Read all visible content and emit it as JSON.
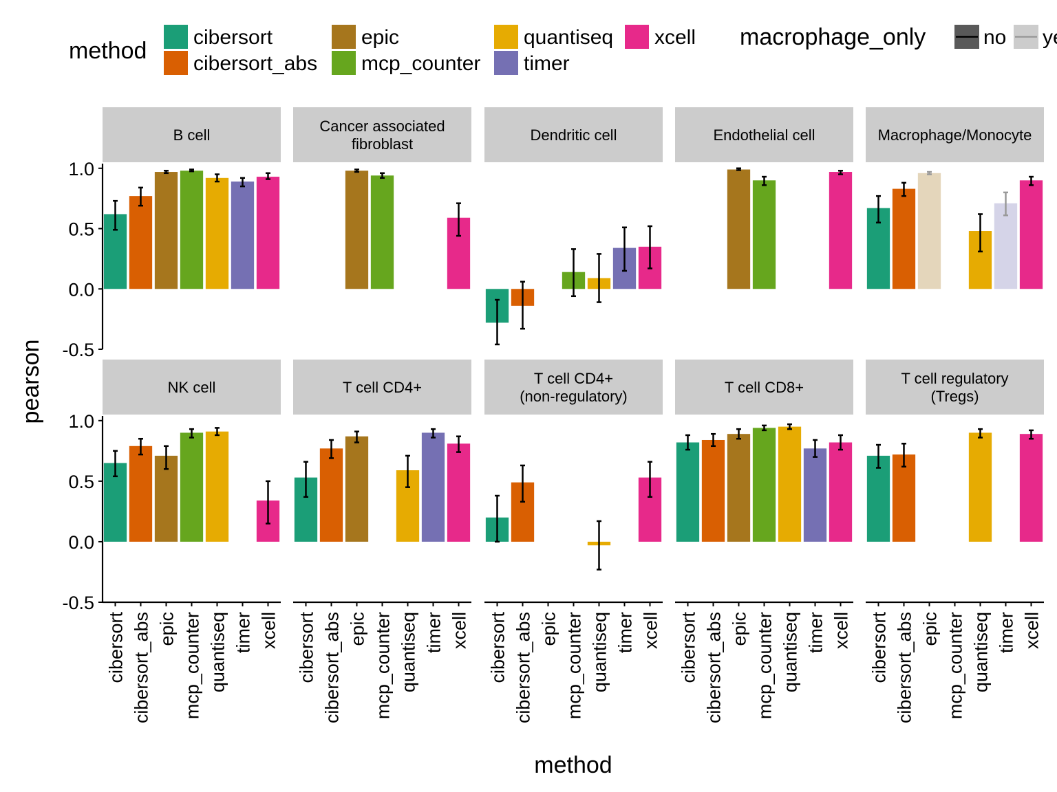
{
  "chart_data": {
    "type": "bar",
    "xlabel": "method",
    "ylabel": "pearson",
    "ylim": [
      -0.5,
      1.05
    ],
    "yticks": [
      -0.5,
      0.0,
      0.5,
      1.0
    ],
    "ytick_labels": [
      "-0.5",
      "0.0",
      "0.5",
      "1.0"
    ],
    "categories": [
      "cibersort",
      "cibersort_abs",
      "epic",
      "mcp_counter",
      "quantiseq",
      "timer",
      "xcell"
    ],
    "colors": {
      "cibersort": "#1b9e77",
      "cibersort_abs": "#d95f02",
      "epic": "#a6761d",
      "mcp_counter": "#66a61e",
      "quantiseq": "#e6ab02",
      "timer": "#7570b3",
      "xcell": "#e7298a"
    },
    "legend": {
      "method_title": "method",
      "method_items": [
        "cibersort",
        "cibersort_abs",
        "epic",
        "mcp_counter",
        "quantiseq",
        "timer",
        "xcell"
      ],
      "macrophage_title": "macrophage_only",
      "macrophage_items": [
        {
          "label": "no",
          "color": "#000000"
        },
        {
          "label": "yes",
          "color": "#999999"
        }
      ],
      "placement": "top"
    },
    "grid": false,
    "panels": [
      {
        "title": "B cell",
        "bars": [
          {
            "method": "cibersort",
            "value": 0.62,
            "lo": 0.49,
            "hi": 0.73
          },
          {
            "method": "cibersort_abs",
            "value": 0.77,
            "lo": 0.69,
            "hi": 0.84
          },
          {
            "method": "epic",
            "value": 0.97,
            "lo": 0.96,
            "hi": 0.98
          },
          {
            "method": "mcp_counter",
            "value": 0.98,
            "lo": 0.975,
            "hi": 0.99
          },
          {
            "method": "quantiseq",
            "value": 0.92,
            "lo": 0.89,
            "hi": 0.95
          },
          {
            "method": "timer",
            "value": 0.89,
            "lo": 0.85,
            "hi": 0.92
          },
          {
            "method": "xcell",
            "value": 0.93,
            "lo": 0.91,
            "hi": 0.96
          }
        ]
      },
      {
        "title": "Cancer associated fibroblast",
        "bars": [
          {
            "method": "epic",
            "value": 0.98,
            "lo": 0.97,
            "hi": 0.99
          },
          {
            "method": "mcp_counter",
            "value": 0.94,
            "lo": 0.92,
            "hi": 0.96
          },
          {
            "method": "xcell",
            "value": 0.59,
            "lo": 0.44,
            "hi": 0.71
          }
        ]
      },
      {
        "title": "Dendritic cell",
        "bars": [
          {
            "method": "cibersort",
            "value": -0.28,
            "lo": -0.46,
            "hi": -0.09
          },
          {
            "method": "cibersort_abs",
            "value": -0.14,
            "lo": -0.33,
            "hi": 0.06
          },
          {
            "method": "mcp_counter",
            "value": 0.14,
            "lo": -0.06,
            "hi": 0.33
          },
          {
            "method": "quantiseq",
            "value": 0.09,
            "lo": -0.11,
            "hi": 0.29
          },
          {
            "method": "timer",
            "value": 0.34,
            "lo": 0.15,
            "hi": 0.51
          },
          {
            "method": "xcell",
            "value": 0.35,
            "lo": 0.17,
            "hi": 0.52
          }
        ]
      },
      {
        "title": "Endothelial cell",
        "bars": [
          {
            "method": "epic",
            "value": 0.99,
            "lo": 0.985,
            "hi": 1.0
          },
          {
            "method": "mcp_counter",
            "value": 0.9,
            "lo": 0.86,
            "hi": 0.93
          },
          {
            "method": "xcell",
            "value": 0.97,
            "lo": 0.95,
            "hi": 0.98
          }
        ]
      },
      {
        "title": "Macrophage/Monocyte",
        "bars": [
          {
            "method": "cibersort",
            "value": 0.67,
            "lo": 0.55,
            "hi": 0.77
          },
          {
            "method": "cibersort_abs",
            "value": 0.83,
            "lo": 0.77,
            "hi": 0.88
          },
          {
            "method": "epic",
            "value": 0.96,
            "lo": 0.95,
            "hi": 0.97,
            "macrophage_only": "yes"
          },
          {
            "method": "quantiseq",
            "value": 0.48,
            "lo": 0.31,
            "hi": 0.62
          },
          {
            "method": "timer",
            "value": 0.71,
            "lo": 0.61,
            "hi": 0.8,
            "macrophage_only": "yes"
          },
          {
            "method": "xcell",
            "value": 0.9,
            "lo": 0.86,
            "hi": 0.93
          }
        ]
      },
      {
        "title": "NK cell",
        "bars": [
          {
            "method": "cibersort",
            "value": 0.65,
            "lo": 0.54,
            "hi": 0.75
          },
          {
            "method": "cibersort_abs",
            "value": 0.79,
            "lo": 0.72,
            "hi": 0.85
          },
          {
            "method": "epic",
            "value": 0.71,
            "lo": 0.6,
            "hi": 0.79
          },
          {
            "method": "mcp_counter",
            "value": 0.9,
            "lo": 0.86,
            "hi": 0.93
          },
          {
            "method": "quantiseq",
            "value": 0.91,
            "lo": 0.88,
            "hi": 0.94
          },
          {
            "method": "xcell",
            "value": 0.34,
            "lo": 0.15,
            "hi": 0.5
          }
        ]
      },
      {
        "title": "T cell CD4+",
        "bars": [
          {
            "method": "cibersort",
            "value": 0.53,
            "lo": 0.37,
            "hi": 0.66
          },
          {
            "method": "cibersort_abs",
            "value": 0.77,
            "lo": 0.69,
            "hi": 0.84
          },
          {
            "method": "epic",
            "value": 0.87,
            "lo": 0.82,
            "hi": 0.91
          },
          {
            "method": "quantiseq",
            "value": 0.59,
            "lo": 0.45,
            "hi": 0.71
          },
          {
            "method": "timer",
            "value": 0.9,
            "lo": 0.86,
            "hi": 0.93
          },
          {
            "method": "xcell",
            "value": 0.81,
            "lo": 0.74,
            "hi": 0.87
          }
        ]
      },
      {
        "title": "T cell CD4+ (non-regulatory)",
        "bars": [
          {
            "method": "cibersort",
            "value": 0.2,
            "lo": 0.0,
            "hi": 0.38
          },
          {
            "method": "cibersort_abs",
            "value": 0.49,
            "lo": 0.33,
            "hi": 0.63
          },
          {
            "method": "quantiseq",
            "value": -0.03,
            "lo": -0.23,
            "hi": 0.17
          },
          {
            "method": "xcell",
            "value": 0.53,
            "lo": 0.37,
            "hi": 0.66
          }
        ]
      },
      {
        "title": "T cell CD8+",
        "bars": [
          {
            "method": "cibersort",
            "value": 0.82,
            "lo": 0.76,
            "hi": 0.88
          },
          {
            "method": "cibersort_abs",
            "value": 0.84,
            "lo": 0.79,
            "hi": 0.89
          },
          {
            "method": "epic",
            "value": 0.89,
            "lo": 0.85,
            "hi": 0.93
          },
          {
            "method": "mcp_counter",
            "value": 0.94,
            "lo": 0.92,
            "hi": 0.96
          },
          {
            "method": "quantiseq",
            "value": 0.95,
            "lo": 0.93,
            "hi": 0.97
          },
          {
            "method": "timer",
            "value": 0.77,
            "lo": 0.7,
            "hi": 0.84
          },
          {
            "method": "xcell",
            "value": 0.82,
            "lo": 0.76,
            "hi": 0.88
          }
        ]
      },
      {
        "title": "T cell regulatory (Tregs)",
        "bars": [
          {
            "method": "cibersort",
            "value": 0.71,
            "lo": 0.61,
            "hi": 0.8
          },
          {
            "method": "cibersort_abs",
            "value": 0.72,
            "lo": 0.62,
            "hi": 0.81
          },
          {
            "method": "quantiseq",
            "value": 0.9,
            "lo": 0.86,
            "hi": 0.93
          },
          {
            "method": "xcell",
            "value": 0.89,
            "lo": 0.85,
            "hi": 0.92
          }
        ]
      }
    ]
  }
}
